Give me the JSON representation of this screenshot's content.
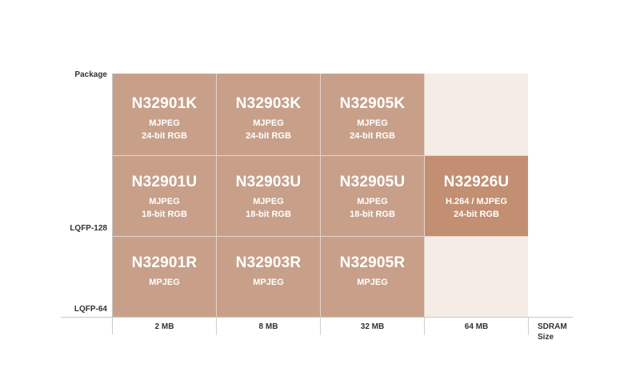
{
  "y_axis": {
    "title": "Package",
    "rows": [
      "LQFP-128",
      "LQFP-64"
    ]
  },
  "x_axis": {
    "title": [
      "SDRAM",
      "Size"
    ],
    "columns": [
      "2 MB",
      "8 MB",
      "32 MB",
      "64 MB"
    ]
  },
  "grid": {
    "row1": [
      {
        "name": "N32901K",
        "features": [
          "MJPEG",
          "24-bit RGB"
        ]
      },
      {
        "name": "N32903K",
        "features": [
          "MJPEG",
          "24-bit RGB"
        ]
      },
      {
        "name": "N32905K",
        "features": [
          "MJPEG",
          "24-bit RGB"
        ]
      }
    ],
    "row2": [
      {
        "name": "N32901U",
        "features": [
          "MJPEG",
          "18-bit RGB"
        ]
      },
      {
        "name": "N32903U",
        "features": [
          "MJPEG",
          "18-bit RGB"
        ]
      },
      {
        "name": "N32905U",
        "features": [
          "MJPEG",
          "18-bit RGB"
        ]
      },
      {
        "name": "N32926U",
        "features": [
          "H.264 / MJPEG",
          "24-bit RGB"
        ]
      }
    ],
    "row3": [
      {
        "name": "N32901R",
        "features": [
          "MPJEG"
        ]
      },
      {
        "name": "N32903R",
        "features": [
          "MPJEG"
        ]
      },
      {
        "name": "N32905R",
        "features": [
          "MPJEG"
        ]
      }
    ]
  },
  "colors": {
    "cell": "#c8a08a",
    "highlight": "#c28f72",
    "empty": "#f5ece6"
  }
}
